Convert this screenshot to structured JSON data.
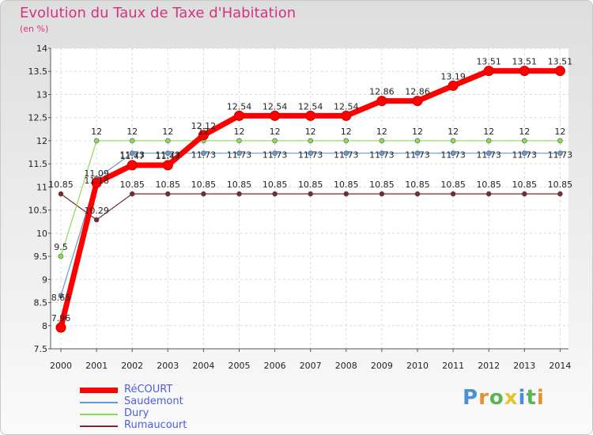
{
  "chart_data": {
    "type": "line",
    "title": "Evolution du Taux de Taxe d'Habitation",
    "ylabel": "(en %)",
    "xlabel": "",
    "categories": [
      "2000",
      "2001",
      "2002",
      "2003",
      "2004",
      "2005",
      "2006",
      "2007",
      "2008",
      "2009",
      "2010",
      "2011",
      "2012",
      "2013",
      "2014"
    ],
    "ylim": [
      7.5,
      14
    ],
    "yticks": [
      "7.5",
      "8",
      "8.5",
      "9",
      "9.5",
      "10",
      "10.5",
      "11",
      "11.5",
      "12",
      "12.5",
      "13",
      "13.5",
      "14"
    ],
    "series": [
      {
        "name": "RéCOURT",
        "color": "#ff0000",
        "values": [
          7.96,
          11.09,
          11.47,
          11.47,
          12.12,
          12.54,
          12.54,
          12.54,
          12.54,
          12.86,
          12.86,
          13.19,
          13.51,
          13.51,
          13.51
        ]
      },
      {
        "name": "Saudemont",
        "color": "#6699cc",
        "values": [
          8.65,
          11.18,
          11.73,
          11.73,
          11.73,
          11.73,
          11.73,
          11.73,
          11.73,
          11.73,
          11.73,
          11.73,
          11.73,
          11.73,
          11.73
        ]
      },
      {
        "name": "Dury",
        "color": "#88dd55",
        "values": [
          9.5,
          12,
          12,
          12,
          12,
          12,
          12,
          12,
          12,
          12,
          12,
          12,
          12,
          12,
          12
        ]
      },
      {
        "name": "Rumaucourt",
        "color": "#7a2a2a",
        "values": [
          10.85,
          10.29,
          10.85,
          10.85,
          10.85,
          10.85,
          10.85,
          10.85,
          10.85,
          10.85,
          10.85,
          10.85,
          10.85,
          10.85,
          10.85
        ]
      }
    ]
  },
  "logo": {
    "letters": [
      "P",
      "r",
      "o",
      "x",
      "i",
      "t",
      "i"
    ],
    "colors": [
      "#4a90d9",
      "#e5912d",
      "#5ab552",
      "#e3c62a",
      "#4a90d9",
      "#5ab552",
      "#e5912d"
    ]
  }
}
